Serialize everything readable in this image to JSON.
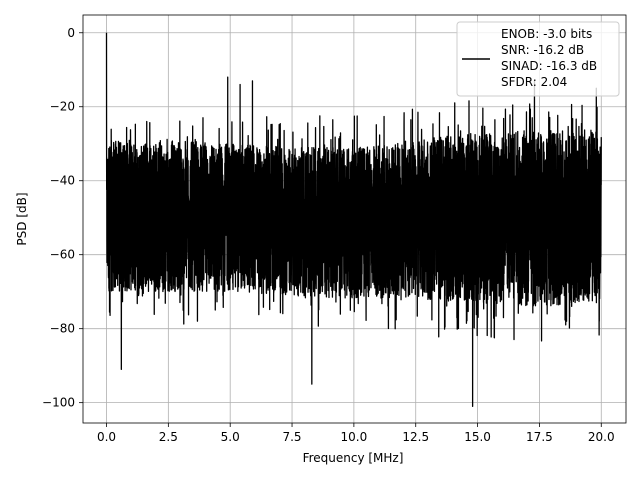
{
  "chart_data": {
    "type": "line",
    "xlabel": "Frequency [MHz]",
    "ylabel": "PSD [dB]",
    "xlim": [
      -0.95,
      21.0
    ],
    "ylim": [
      -105.5,
      4.8
    ],
    "x_ticks": [
      0.0,
      2.5,
      5.0,
      7.5,
      10.0,
      12.5,
      15.0,
      17.5,
      20.0
    ],
    "x_tick_labels": [
      "0.0",
      "2.5",
      "5.0",
      "7.5",
      "10.0",
      "12.5",
      "15.0",
      "17.5",
      "20.0"
    ],
    "y_ticks": [
      0,
      -20,
      -40,
      -60,
      -80,
      -100
    ],
    "y_tick_labels": [
      "0",
      "−20",
      "−40",
      "−60",
      "−80",
      "−100"
    ],
    "grid": true,
    "legend_position": "top-right",
    "legend_lines": [
      "ENOB: -3.0 bits",
      "SNR: -16.2 dB",
      "SINAD: -16.3 dB",
      "SFDR: 2.04"
    ],
    "series_color": "#000000",
    "notable_points": [
      {
        "x": 0.0,
        "y": 0.0
      },
      {
        "x": 0.6,
        "y": -91
      },
      {
        "x": 4.9,
        "y": -12
      },
      {
        "x": 5.4,
        "y": -14
      },
      {
        "x": 5.9,
        "y": -13
      },
      {
        "x": 8.3,
        "y": -95
      },
      {
        "x": 14.8,
        "y": -101
      },
      {
        "x": 17.3,
        "y": -13
      },
      {
        "x": 19.8,
        "y": -15
      }
    ],
    "band_profile": {
      "x": [
        0.0,
        2.5,
        5.0,
        7.5,
        10.0,
        12.5,
        15.0,
        17.5,
        20.0
      ],
      "upper_db": [
        -29,
        -29,
        -30,
        -31,
        -31,
        -29,
        -27,
        -26,
        -26
      ],
      "lower_db": [
        -70,
        -70,
        -70,
        -71,
        -72,
        -72,
        -73,
        -74,
        -73
      ]
    }
  }
}
